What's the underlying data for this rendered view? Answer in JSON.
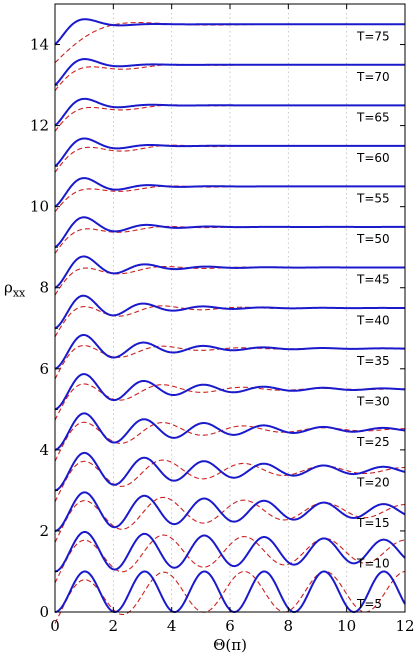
{
  "chart_data": {
    "type": "line",
    "xlabel": "Θ(π)",
    "ylabel": "ρ",
    "ylabel_sub": "xx",
    "xlim": [
      0,
      12
    ],
    "ylim": [
      0,
      15
    ],
    "x_ticks": [
      0,
      2,
      4,
      6,
      8,
      10,
      12
    ],
    "y_ticks": [
      0,
      2,
      4,
      6,
      8,
      10,
      12,
      14
    ],
    "grid": "vertical dotted",
    "series_style": {
      "solid": {
        "color": "#1a1acc",
        "dash": "none"
      },
      "dashed": {
        "color": "#cc2222",
        "dash": "5,3"
      }
    },
    "curves": [
      {
        "label": "T=5",
        "offset": 0,
        "amp_solid": 1.0,
        "decay_solid": 0.0,
        "period": 2.05,
        "amp_dashed": 1.0,
        "decay_dashed": 0.0,
        "end_value": 0.38
      },
      {
        "label": "T=10",
        "offset": 1,
        "amp_solid": 1.0,
        "decay_solid": 0.05,
        "period": 2.05,
        "amp_dashed": 1.0,
        "decay_dashed": 0.05,
        "end_value": 1.45
      },
      {
        "label": "T=15",
        "offset": 2,
        "amp_solid": 1.0,
        "decay_solid": 0.1,
        "period": 2.05,
        "amp_dashed": 1.0,
        "decay_dashed": 0.1,
        "end_value": 2.45
      },
      {
        "label": "T=20",
        "offset": 3,
        "amp_solid": 1.0,
        "decay_solid": 0.16,
        "period": 2.05,
        "amp_dashed": 1.0,
        "decay_dashed": 0.17,
        "end_value": 3.5
      },
      {
        "label": "T=25",
        "offset": 4,
        "amp_solid": 1.0,
        "decay_solid": 0.22,
        "period": 2.05,
        "amp_dashed": 1.0,
        "decay_dashed": 0.26,
        "end_value": 4.5
      },
      {
        "label": "T=30",
        "offset": 5,
        "amp_solid": 1.0,
        "decay_solid": 0.3,
        "period": 2.05,
        "amp_dashed": 0.95,
        "decay_dashed": 0.36,
        "end_value": 5.5
      },
      {
        "label": "T=35",
        "offset": 6,
        "amp_solid": 1.0,
        "decay_solid": 0.4,
        "period": 2.05,
        "amp_dashed": 0.9,
        "decay_dashed": 0.48,
        "end_value": 6.5
      },
      {
        "label": "T=40",
        "offset": 7,
        "amp_solid": 1.0,
        "decay_solid": 0.5,
        "period": 2.05,
        "amp_dashed": 0.75,
        "decay_dashed": 0.45,
        "end_value": 7.5
      },
      {
        "label": "T=45",
        "offset": 8,
        "amp_solid": 0.95,
        "decay_solid": 0.6,
        "period": 2.1,
        "amp_dashed": 0.65,
        "decay_dashed": 0.55,
        "end_value": 8.5
      },
      {
        "label": "T=50",
        "offset": 9,
        "amp_solid": 0.95,
        "decay_solid": 0.72,
        "period": 2.15,
        "amp_dashed": 0.55,
        "decay_dashed": 0.6,
        "end_value": 9.5
      },
      {
        "label": "T=55",
        "offset": 10,
        "amp_solid": 0.95,
        "decay_solid": 0.85,
        "period": 2.2,
        "amp_dashed": 0.45,
        "decay_dashed": 0.55,
        "end_value": 10.5
      },
      {
        "label": "T=60",
        "offset": 11,
        "amp_solid": 0.95,
        "decay_solid": 0.95,
        "period": 2.25,
        "amp_dashed": 0.55,
        "decay_dashed": 0.55,
        "end_value": 11.5
      },
      {
        "label": "T=65",
        "offset": 12,
        "amp_solid": 0.95,
        "decay_solid": 1.05,
        "period": 2.3,
        "amp_dashed": 0.5,
        "decay_dashed": 0.6,
        "end_value": 12.5
      },
      {
        "label": "T=70",
        "offset": 13,
        "amp_solid": 0.95,
        "decay_solid": 1.15,
        "period": 2.35,
        "amp_dashed": 0.5,
        "decay_dashed": 0.6,
        "end_value": 13.5
      },
      {
        "label": "T=75",
        "offset": 14,
        "amp_solid": 0.95,
        "decay_solid": 1.25,
        "period": 2.4,
        "amp_dashed": -0.45,
        "decay_dashed": 0.6,
        "end_value": 14.5
      }
    ]
  }
}
